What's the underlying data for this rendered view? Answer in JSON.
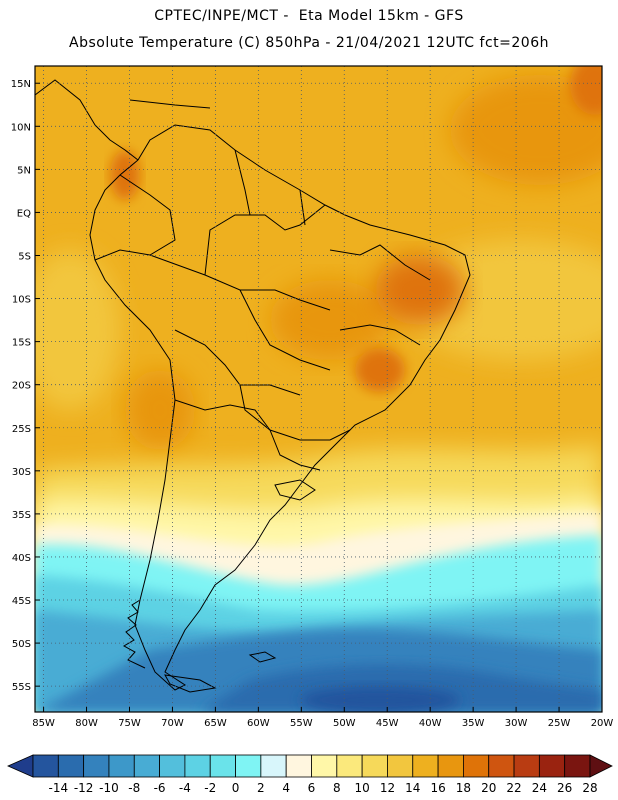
{
  "header": {
    "line1": "CPTEC/INPE/MCT -  Eta Model 15km - GFS",
    "line2": "Absolute Temperature (C) 850hPa - 21/04/2021 12UTC fct=206h"
  },
  "map": {
    "lat_labels": [
      "15N",
      "10N",
      "5N",
      "EQ",
      "5S",
      "10S",
      "15S",
      "20S",
      "25S",
      "30S",
      "35S",
      "40S",
      "45S",
      "50S",
      "55S"
    ],
    "lon_labels": [
      "85W",
      "80W",
      "75W",
      "70W",
      "65W",
      "60W",
      "55W",
      "50W",
      "45W",
      "40W",
      "35W",
      "30W",
      "25W",
      "20W"
    ],
    "lat_values": [
      15,
      10,
      5,
      0,
      -5,
      -10,
      -15,
      -20,
      -25,
      -30,
      -35,
      -40,
      -45,
      -50,
      -55
    ],
    "lon_values": [
      -85,
      -80,
      -75,
      -70,
      -65,
      -60,
      -55,
      -50,
      -45,
      -40,
      -35,
      -30,
      -25,
      -20
    ],
    "lon_range": [
      -86,
      -20
    ],
    "lat_range": [
      -58,
      17
    ]
  },
  "colorbar": {
    "labels": [
      "-14",
      "-12",
      "-10",
      "-8",
      "-6",
      "-4",
      "-2",
      "0",
      "2",
      "4",
      "6",
      "8",
      "10",
      "12",
      "14",
      "16",
      "18",
      "20",
      "22",
      "24",
      "26",
      "28"
    ],
    "colors": [
      "#1f3d8c",
      "#24559e",
      "#2a6cae",
      "#3482bd",
      "#3d98c9",
      "#48acd4",
      "#53bfdc",
      "#5dd2e4",
      "#6ae3ea",
      "#7ff4f4",
      "#d8f6fb",
      "#fff6df",
      "#fff7a8",
      "#fbe97c",
      "#f6d95a",
      "#f2c63e",
      "#eeb01f",
      "#e8960f",
      "#df7308",
      "#cf5510",
      "#b93c12",
      "#9a2310",
      "#7a1510",
      "#5e0f12"
    ]
  }
}
